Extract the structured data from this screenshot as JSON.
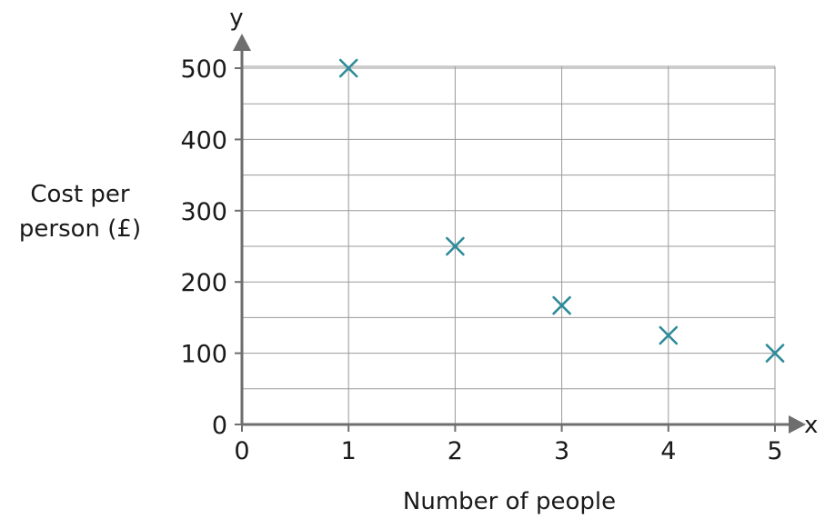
{
  "chart_data": {
    "type": "scatter",
    "title": "",
    "xlabel": "Number of people",
    "ylabel_lines": [
      "Cost per",
      "person (£)"
    ],
    "x_axis_letter": "x",
    "y_axis_letter": "y",
    "x_ticks": [
      "0",
      "1",
      "2",
      "3",
      "4",
      "5"
    ],
    "y_ticks": [
      "0",
      "100",
      "200",
      "300",
      "400",
      "500"
    ],
    "xlim": [
      0,
      5
    ],
    "ylim": [
      0,
      500
    ],
    "grid": true,
    "marker": "cross",
    "marker_color": "#2e8b9a",
    "axis_color": "#6e6e6e",
    "points": [
      {
        "x": 1,
        "y": 500
      },
      {
        "x": 2,
        "y": 250
      },
      {
        "x": 3,
        "y": 167
      },
      {
        "x": 4,
        "y": 125
      },
      {
        "x": 5,
        "y": 100
      }
    ]
  }
}
